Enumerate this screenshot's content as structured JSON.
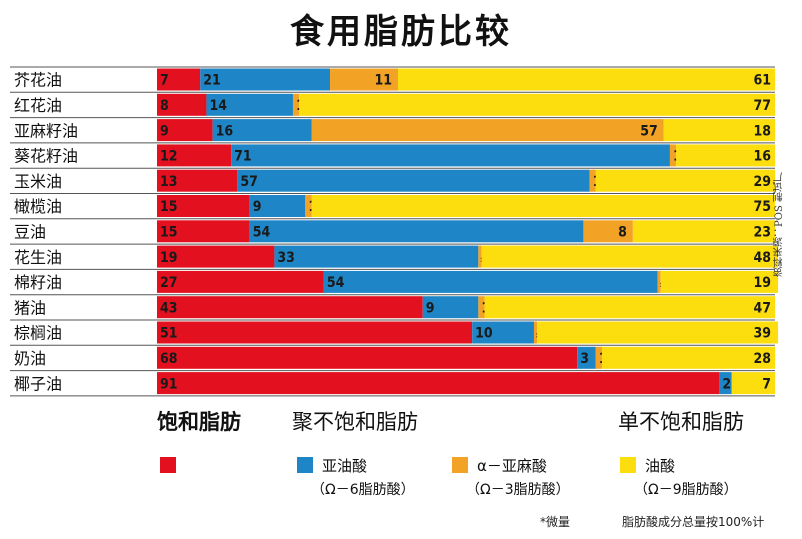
{
  "title": "食用脂肪比较",
  "colors": {
    "saturated": "#E3101F",
    "omega6": "#1E86C7",
    "omega3": "#F2A225",
    "omega9": "#FCDD0D"
  },
  "categories_header": {
    "saturated": "饱和脂肪",
    "polyunsaturated": "聚不饱和脂肪",
    "monounsaturated": "单不饱和脂肪"
  },
  "legend": {
    "saturated": {
      "name": "",
      "sub": ""
    },
    "omega6": {
      "name": "亚油酸",
      "sub": "（Ω－6脂肪酸）"
    },
    "omega3": {
      "name": "α－亚麻酸",
      "sub": "（Ω－3脂肪酸）"
    },
    "omega9": {
      "name": "油酸",
      "sub": "（Ω－9脂肪酸）"
    }
  },
  "source_note": "资料来源：POS 制试厂",
  "footnotes": {
    "trace": "*微量",
    "basis": "脂肪酸成分总量按100%计"
  },
  "chart_data": {
    "type": "bar",
    "stacked": true,
    "orientation": "horizontal",
    "title": "食用脂肪比较",
    "categories": [
      "芥花油",
      "红花油",
      "亚麻籽油",
      "葵花籽油",
      "玉米油",
      "橄榄油",
      "豆油",
      "花生油",
      "棉籽油",
      "猪油",
      "棕榈油",
      "奶油",
      "椰子油"
    ],
    "series": [
      {
        "name": "饱和脂肪",
        "color": "#E3101F",
        "values": [
          7,
          8,
          9,
          12,
          13,
          15,
          15,
          19,
          27,
          43,
          51,
          68,
          91
        ]
      },
      {
        "name": "亚油酸（Ω－6脂肪酸）",
        "color": "#1E86C7",
        "values": [
          21,
          14,
          16,
          71,
          57,
          9,
          54,
          33,
          54,
          9,
          10,
          3,
          2
        ]
      },
      {
        "name": "α－亚麻酸（Ω－3脂肪酸）",
        "color": "#F2A225",
        "values": [
          11,
          1,
          57,
          1,
          1,
          1,
          8,
          "*",
          "*",
          1,
          "*",
          1,
          null
        ]
      },
      {
        "name": "油酸（Ω－9脂肪酸）",
        "color": "#FCDD0D",
        "values": [
          61,
          77,
          18,
          16,
          29,
          75,
          23,
          48,
          19,
          47,
          39,
          28,
          7
        ]
      }
    ],
    "xlim": [
      0,
      100
    ]
  }
}
